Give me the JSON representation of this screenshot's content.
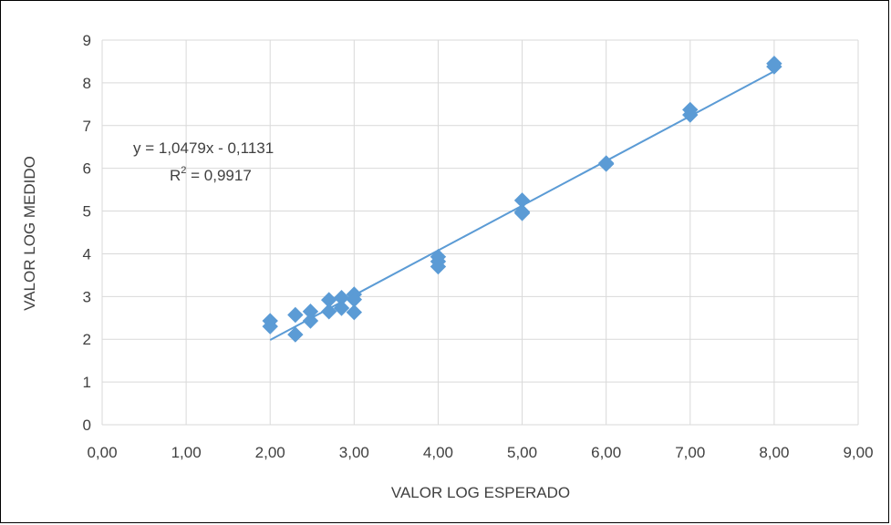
{
  "chart_data": {
    "type": "scatter",
    "title": "",
    "xlabel": "VALOR LOG ESPERADO",
    "ylabel": "VALOR LOG MEDIDO",
    "xlim": [
      0,
      9
    ],
    "ylim": [
      0,
      9
    ],
    "x_ticks": [
      "0,00",
      "1,00",
      "2,00",
      "3,00",
      "4,00",
      "5,00",
      "6,00",
      "7,00",
      "8,00",
      "9,00"
    ],
    "y_ticks": [
      "0",
      "1",
      "2",
      "3",
      "4",
      "5",
      "6",
      "7",
      "8",
      "9"
    ],
    "grid": true,
    "legend": "none",
    "marker": "diamond",
    "colors": {
      "points": "#5B9BD5",
      "trendline": "#5B9BD5",
      "grid": "#D9D9D9"
    },
    "points": [
      {
        "x": 2.0,
        "y": 2.43
      },
      {
        "x": 2.0,
        "y": 2.3
      },
      {
        "x": 2.3,
        "y": 2.57
      },
      {
        "x": 2.3,
        "y": 2.11
      },
      {
        "x": 2.48,
        "y": 2.65
      },
      {
        "x": 2.48,
        "y": 2.43
      },
      {
        "x": 2.7,
        "y": 2.92
      },
      {
        "x": 2.7,
        "y": 2.65
      },
      {
        "x": 2.85,
        "y": 2.97
      },
      {
        "x": 2.85,
        "y": 2.73
      },
      {
        "x": 3.0,
        "y": 3.05
      },
      {
        "x": 3.0,
        "y": 2.93
      },
      {
        "x": 3.0,
        "y": 2.63
      },
      {
        "x": 4.0,
        "y": 3.93
      },
      {
        "x": 4.0,
        "y": 3.82
      },
      {
        "x": 4.0,
        "y": 3.7
      },
      {
        "x": 5.0,
        "y": 5.25
      },
      {
        "x": 5.0,
        "y": 4.98
      },
      {
        "x": 5.0,
        "y": 4.95
      },
      {
        "x": 6.0,
        "y": 6.1
      },
      {
        "x": 6.0,
        "y": 6.12
      },
      {
        "x": 7.0,
        "y": 7.37
      },
      {
        "x": 7.0,
        "y": 7.25
      },
      {
        "x": 8.0,
        "y": 8.45
      },
      {
        "x": 8.0,
        "y": 8.38
      }
    ],
    "trendline": {
      "slope": 1.0479,
      "intercept": -0.1131,
      "x_range": [
        2.0,
        8.0
      ]
    },
    "annotations": {
      "equation": "y = 1,0479x - 0,1131",
      "r2_prefix": "R",
      "r2_sup": "2",
      "r2_suffix": " = 0,9917"
    }
  }
}
